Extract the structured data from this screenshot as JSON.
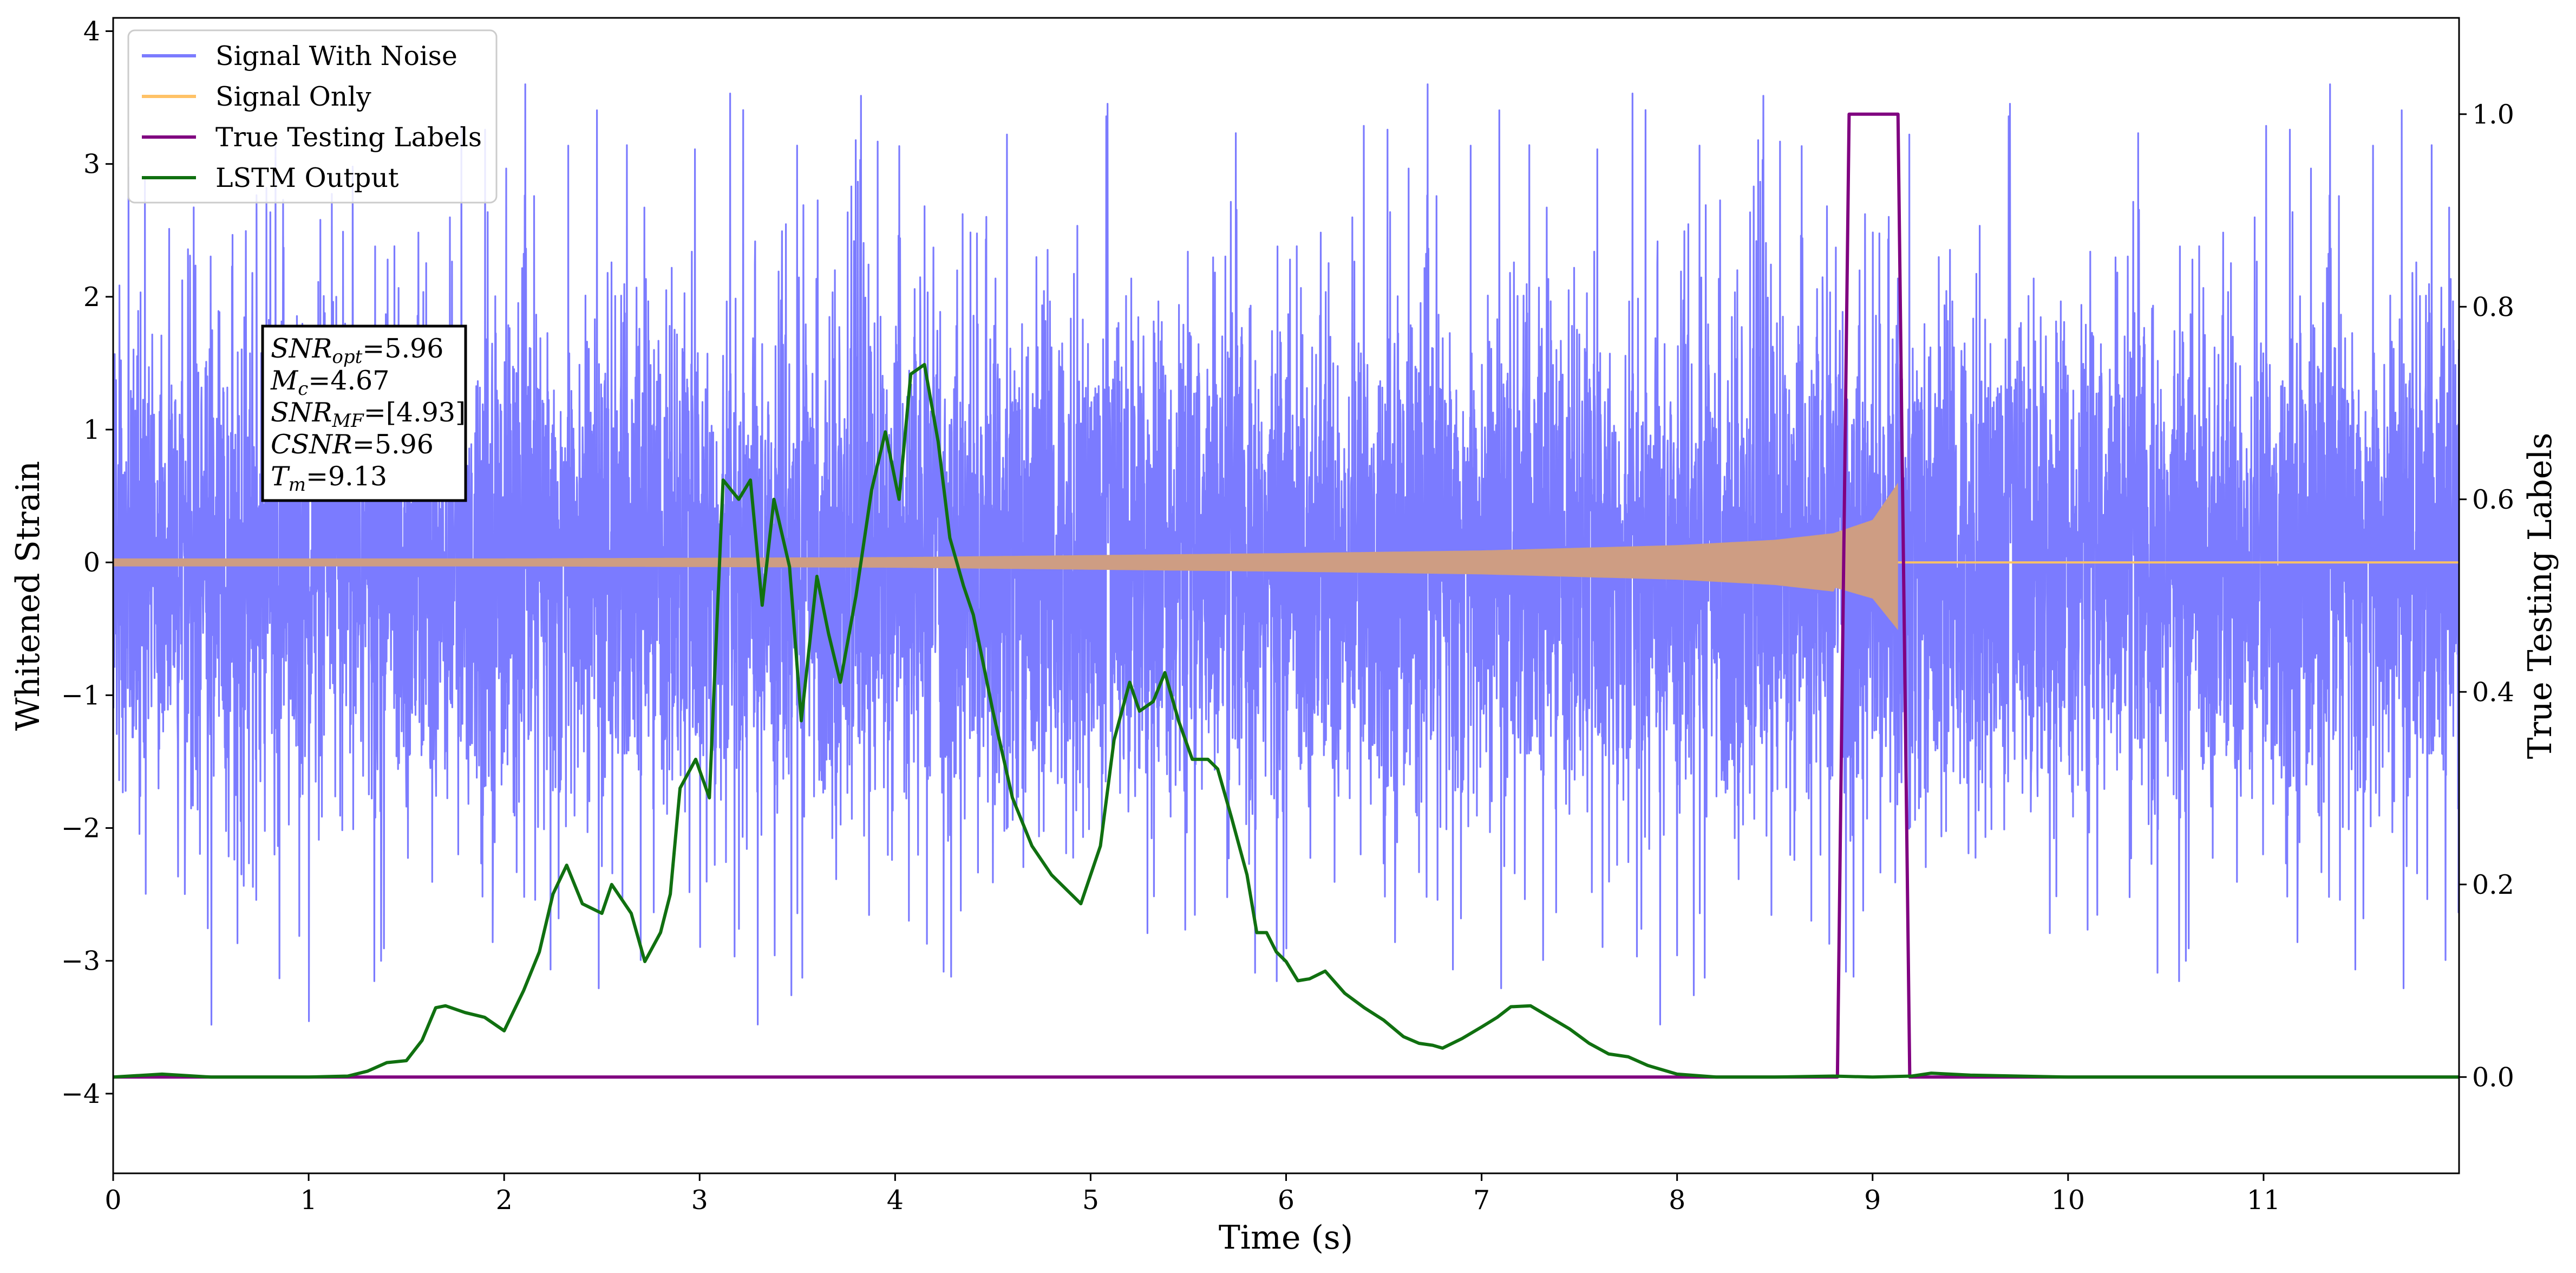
{
  "chart_data": {
    "type": "line",
    "xlabel": "Time (s)",
    "ylabel": "Whitened Strain",
    "ylabel_right": "True Testing Labels",
    "xlim": [
      0,
      12
    ],
    "ylim": [
      -4.6,
      4.1
    ],
    "ylim_right": [
      -0.1,
      1.1
    ],
    "x_ticks": [
      "0",
      "1",
      "2",
      "3",
      "4",
      "5",
      "6",
      "7",
      "8",
      "9",
      "10",
      "11"
    ],
    "y_ticks": [
      "−4",
      "−3",
      "−2",
      "−1",
      "0",
      "1",
      "2",
      "3",
      "4"
    ],
    "y_right_ticks": [
      "0.0",
      "0.2",
      "0.4",
      "0.6",
      "0.8",
      "1.0"
    ],
    "legend_position": "upper-left",
    "legend": [
      "Signal With Noise",
      "Signal Only",
      "True Testing Labels",
      "LSTM Output"
    ],
    "colors": {
      "signal_with_noise": "#7b7bff",
      "signal_only": "#ffc266",
      "true_labels": "#800080",
      "lstm_output": "#107010"
    },
    "annotation": [
      {
        "sym": "SNR",
        "sub": "opt",
        "value": "=5.96"
      },
      {
        "sym": "M",
        "sub": "c",
        "value": "=4.67"
      },
      {
        "sym": "SNR",
        "sub": "MF",
        "value": "=[4.93]"
      },
      {
        "sym": "CSNR",
        "sub": "",
        "value": "=5.96"
      },
      {
        "sym": "T",
        "sub": "m",
        "value": "=9.13"
      }
    ],
    "signal_with_noise": {
      "description": "dense whitened noise, x from 0 to 12 s, amplitude mostly within ±2",
      "envelope": [
        -2.0,
        2.0
      ],
      "peak_max": 3.6,
      "peak_min": -4.2
    },
    "signal_only": {
      "x": [
        0,
        2,
        4,
        6,
        7,
        8,
        8.5,
        8.8,
        9.0,
        9.13,
        9.14,
        12
      ],
      "amplitude": [
        0.03,
        0.03,
        0.04,
        0.07,
        0.09,
        0.13,
        0.17,
        0.22,
        0.32,
        0.6,
        0,
        0
      ]
    },
    "true_labels": {
      "x": [
        0,
        8.82,
        8.88,
        9.13,
        9.19,
        12
      ],
      "y": [
        0,
        0,
        1,
        1,
        0,
        0
      ]
    },
    "lstm_output": {
      "x": [
        0,
        0.25,
        0.5,
        1.0,
        1.2,
        1.3,
        1.4,
        1.5,
        1.58,
        1.65,
        1.7,
        1.8,
        1.9,
        2.0,
        2.1,
        2.18,
        2.25,
        2.32,
        2.4,
        2.5,
        2.55,
        2.65,
        2.72,
        2.8,
        2.85,
        2.9,
        2.98,
        3.05,
        3.12,
        3.2,
        3.26,
        3.32,
        3.38,
        3.46,
        3.52,
        3.6,
        3.66,
        3.72,
        3.8,
        3.88,
        3.95,
        4.02,
        4.08,
        4.15,
        4.22,
        4.28,
        4.35,
        4.4,
        4.5,
        4.6,
        4.7,
        4.8,
        4.9,
        4.95,
        5.05,
        5.12,
        5.2,
        5.25,
        5.32,
        5.38,
        5.45,
        5.52,
        5.6,
        5.65,
        5.72,
        5.8,
        5.85,
        5.9,
        5.95,
        6.0,
        6.06,
        6.12,
        6.2,
        6.3,
        6.4,
        6.5,
        6.6,
        6.68,
        6.75,
        6.8,
        6.9,
        7.0,
        7.08,
        7.15,
        7.25,
        7.35,
        7.45,
        7.55,
        7.65,
        7.75,
        7.85,
        8.0,
        8.2,
        8.5,
        8.8,
        9.0,
        9.2,
        9.3,
        9.5,
        10.0,
        12.0
      ],
      "y": [
        0.0,
        0.003,
        0.0,
        0.0,
        0.001,
        0.006,
        0.015,
        0.017,
        0.038,
        0.072,
        0.074,
        0.067,
        0.062,
        0.048,
        0.09,
        0.13,
        0.19,
        0.22,
        0.18,
        0.17,
        0.2,
        0.17,
        0.12,
        0.15,
        0.19,
        0.3,
        0.33,
        0.29,
        0.62,
        0.6,
        0.62,
        0.49,
        0.6,
        0.53,
        0.37,
        0.52,
        0.46,
        0.41,
        0.5,
        0.61,
        0.67,
        0.6,
        0.73,
        0.74,
        0.66,
        0.56,
        0.51,
        0.48,
        0.38,
        0.29,
        0.24,
        0.21,
        0.19,
        0.18,
        0.24,
        0.35,
        0.41,
        0.38,
        0.39,
        0.42,
        0.37,
        0.33,
        0.33,
        0.32,
        0.27,
        0.21,
        0.15,
        0.15,
        0.13,
        0.12,
        0.1,
        0.102,
        0.11,
        0.087,
        0.072,
        0.059,
        0.042,
        0.035,
        0.033,
        0.03,
        0.04,
        0.052,
        0.062,
        0.073,
        0.074,
        0.062,
        0.05,
        0.035,
        0.024,
        0.021,
        0.012,
        0.003,
        0.0,
        0.0,
        0.001,
        0.0,
        0.001,
        0.004,
        0.002,
        0.0,
        0.0
      ]
    }
  }
}
